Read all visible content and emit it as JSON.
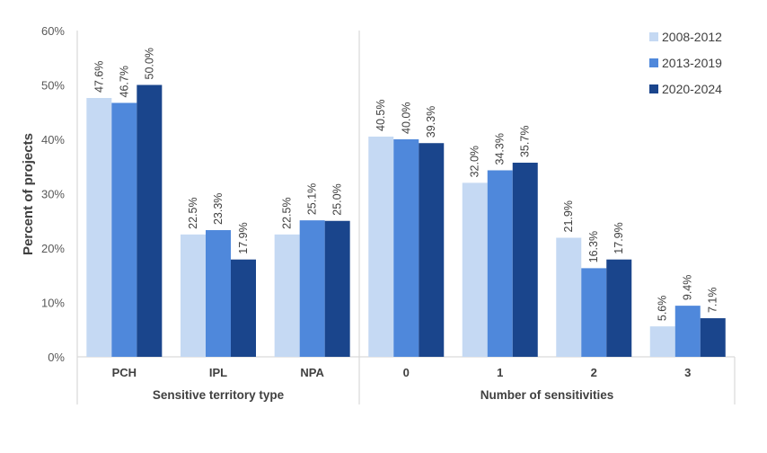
{
  "chart_data": {
    "type": "bar",
    "title": "",
    "ylabel": "Percent of projects",
    "ylim": [
      0,
      60
    ],
    "yticks": [
      0,
      10,
      20,
      30,
      40,
      50,
      60
    ],
    "ytick_labels": [
      "0%",
      "10%",
      "20%",
      "30%",
      "40%",
      "50%",
      "60%"
    ],
    "grid": false,
    "legend_position": "top-right",
    "colors": [
      "#c5d9f3",
      "#4f88db",
      "#1a458c"
    ],
    "series_names": [
      "2008-2012",
      "2013-2019",
      "2020-2024"
    ],
    "groups": [
      {
        "xlabel": "Sensitive territory type",
        "categories": [
          "PCH",
          "IPL",
          "NPA"
        ],
        "series": [
          {
            "name": "2008-2012",
            "values": [
              47.6,
              22.5,
              22.5
            ]
          },
          {
            "name": "2013-2019",
            "values": [
              46.7,
              23.3,
              25.1
            ]
          },
          {
            "name": "2020-2024",
            "values": [
              50.0,
              17.9,
              25.0
            ]
          }
        ]
      },
      {
        "xlabel": "Number of sensitivities",
        "categories": [
          "0",
          "1",
          "2",
          "3"
        ],
        "series": [
          {
            "name": "2008-2012",
            "values": [
              40.5,
              32.0,
              21.9,
              5.6
            ]
          },
          {
            "name": "2013-2019",
            "values": [
              40.0,
              34.3,
              16.3,
              9.4
            ]
          },
          {
            "name": "2020-2024",
            "values": [
              39.3,
              35.7,
              17.9,
              7.1
            ]
          }
        ]
      }
    ],
    "value_format": "{v}%"
  }
}
